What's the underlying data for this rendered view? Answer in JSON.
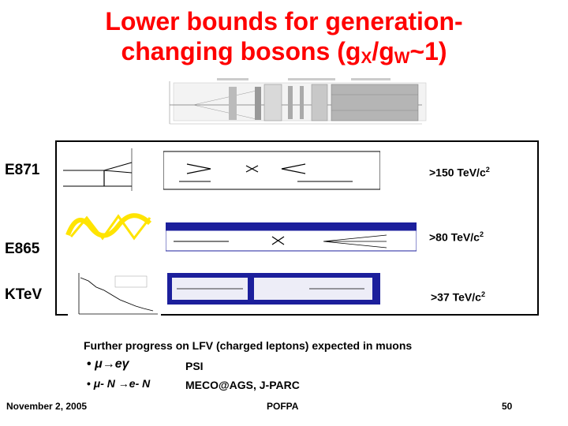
{
  "title": {
    "line1": "Lower bounds for generation-",
    "line2_pre": "changing bosons (g",
    "sub_x": "X",
    "slash": "/g",
    "sub_w": "W",
    "line2_post": "~1)"
  },
  "experiments": [
    {
      "label": "E871",
      "bound": ">150 TeV/c",
      "power": "2"
    },
    {
      "label": "E865",
      "bound": ">80 TeV/c",
      "power": "2"
    },
    {
      "label": "KTeV",
      "bound": ">37 TeV/c",
      "power": "2"
    }
  ],
  "notes": {
    "heading": "Further progress on LFV (charged leptons) expected in muons",
    "bullet1_process": "μ→eγ",
    "bullet1_where": "PSI",
    "bullet2_process": "μ- N →e- N",
    "bullet2_where": "MECO@AGS, J-PARC"
  },
  "footer": {
    "date": "November 2, 2005",
    "event": "POFPA",
    "page": "50"
  },
  "colors": {
    "title": "#ff0000",
    "formula_bg": "#1c1f9c",
    "formula_yellow": "#ffe400"
  }
}
